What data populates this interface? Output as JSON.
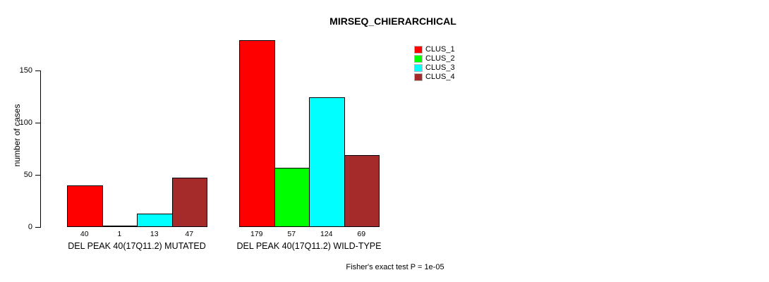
{
  "chart_data": {
    "type": "bar",
    "title": "MIRSEQ_CHIERARCHICAL",
    "ylabel": "number of cases",
    "xlabel": "",
    "categories": [
      "DEL PEAK 40(17Q11.2) MUTATED",
      "DEL PEAK 40(17Q11.2) WILD-TYPE"
    ],
    "series": [
      {
        "name": "CLUS_1",
        "color": "#FF0000",
        "values": [
          40,
          179
        ]
      },
      {
        "name": "CLUS_2",
        "color": "#00FF00",
        "values": [
          1,
          57
        ]
      },
      {
        "name": "CLUS_3",
        "color": "#00FFFF",
        "values": [
          13,
          124
        ]
      },
      {
        "name": "CLUS_4",
        "color": "#A52A2A",
        "values": [
          47,
          69
        ]
      }
    ],
    "yticks": [
      0,
      50,
      100,
      150
    ],
    "ylim": [
      0,
      180
    ],
    "grid": false,
    "legend_position": "top-right",
    "bar_value_labels": true,
    "annotation": "Fisher's exact test P = 1e-05",
    "background": "#FFFFFF"
  }
}
